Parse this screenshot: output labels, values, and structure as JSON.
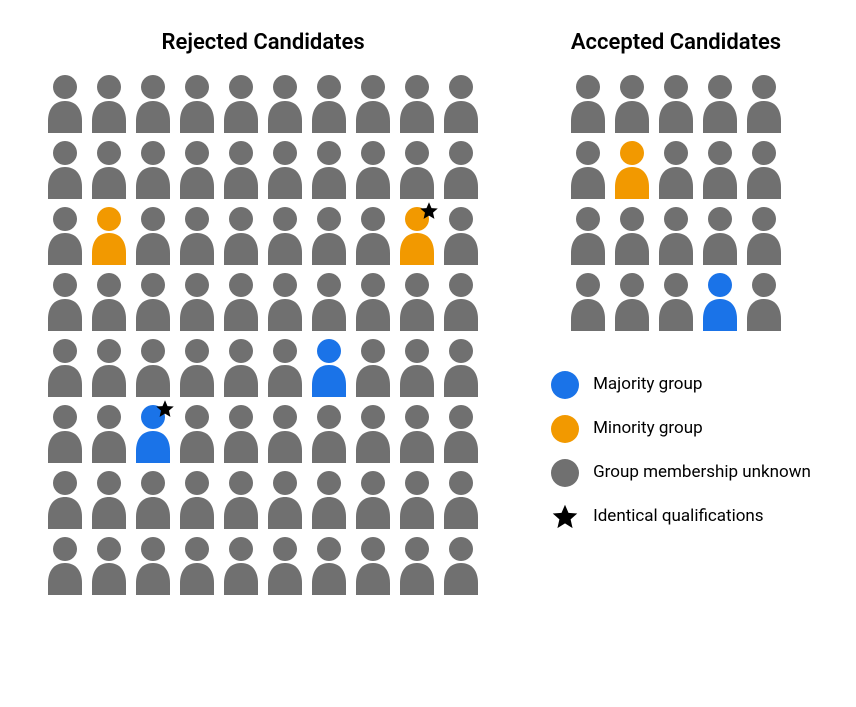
{
  "colors": {
    "unknown": "#707070",
    "majority": "#1a73e8",
    "minority": "#f29900",
    "star_fill": "#000000",
    "background": "#ffffff"
  },
  "titles": {
    "rejected": "Rejected Candidates",
    "accepted": "Accepted Candidates"
  },
  "legend": {
    "majority": "Majority group",
    "minority": "Minority group",
    "unknown": "Group membership unknown",
    "star": "Identical qualifications"
  },
  "rejected": {
    "cols": 10,
    "rows": [
      [
        "u",
        "u",
        "u",
        "u",
        "u",
        "u",
        "u",
        "u",
        "u",
        "u"
      ],
      [
        "u",
        "u",
        "u",
        "u",
        "u",
        "u",
        "u",
        "u",
        "u",
        "u"
      ],
      [
        "u",
        "m",
        "u",
        "u",
        "u",
        "u",
        "u",
        "u",
        "M",
        "u"
      ],
      [
        "u",
        "u",
        "u",
        "u",
        "u",
        "u",
        "u",
        "u",
        "u",
        "u"
      ],
      [
        "u",
        "u",
        "u",
        "u",
        "u",
        "u",
        "b",
        "u",
        "u",
        "u"
      ],
      [
        "u",
        "u",
        "B",
        "u",
        "u",
        "u",
        "u",
        "u",
        "u",
        "u"
      ],
      [
        "u",
        "u",
        "u",
        "u",
        "u",
        "u",
        "u",
        "u",
        "u",
        "u"
      ],
      [
        "u",
        "u",
        "u",
        "u",
        "u",
        "u",
        "u",
        "u",
        "u",
        "u"
      ]
    ]
  },
  "accepted": {
    "cols": 5,
    "rows": [
      [
        "u",
        "u",
        "u",
        "u",
        "u"
      ],
      [
        "u",
        "m",
        "u",
        "u",
        "u"
      ],
      [
        "u",
        "u",
        "u",
        "u",
        "u"
      ],
      [
        "u",
        "u",
        "u",
        "b",
        "u"
      ]
    ]
  },
  "codes": {
    "u": {
      "group": "unknown",
      "star": false
    },
    "m": {
      "group": "minority",
      "star": false
    },
    "M": {
      "group": "minority",
      "star": true
    },
    "b": {
      "group": "majority",
      "star": false
    },
    "B": {
      "group": "majority",
      "star": true
    }
  },
  "icon_sizes": {
    "person_w": 40,
    "person_h": 60
  }
}
